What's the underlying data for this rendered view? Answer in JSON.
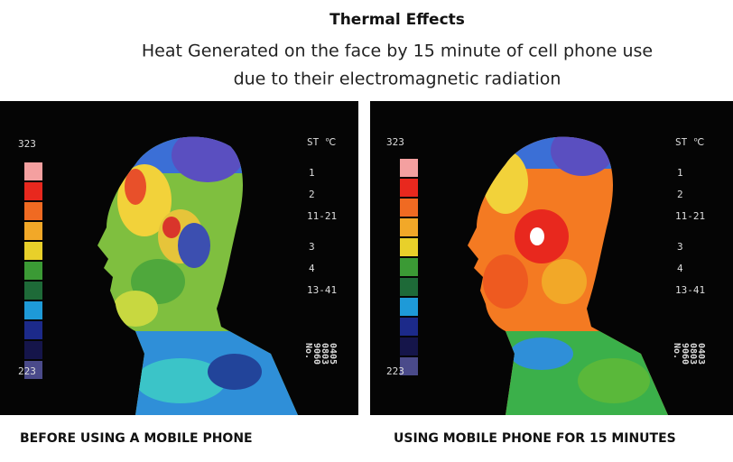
{
  "header": {
    "title": "Thermal Effects",
    "subtitle_lines": [
      "Heat Generated on the face by 15 minute of cell phone use",
      "due to their electromagnetic radiation"
    ]
  },
  "panels": [
    {
      "scale_top": "323",
      "scale_bottom": "223",
      "legend_header": "ST ℃",
      "legend_labels": [
        "1",
        "2",
        "11-21",
        "3",
        "4",
        "13-41"
      ],
      "id_lines": [
        "No.",
        "9060",
        "0803",
        "0405"
      ],
      "caption": "BEFORE USING A MOBILE PHONE"
    },
    {
      "scale_top": "323",
      "scale_bottom": "223",
      "legend_header": "ST ℃",
      "legend_labels": [
        "1",
        "2",
        "11-21",
        "3",
        "4",
        "13-41"
      ],
      "id_lines": [
        "No.",
        "9060",
        "0803",
        "0403"
      ],
      "caption": "USING MOBILE PHONE FOR 15 MINUTES"
    }
  ]
}
